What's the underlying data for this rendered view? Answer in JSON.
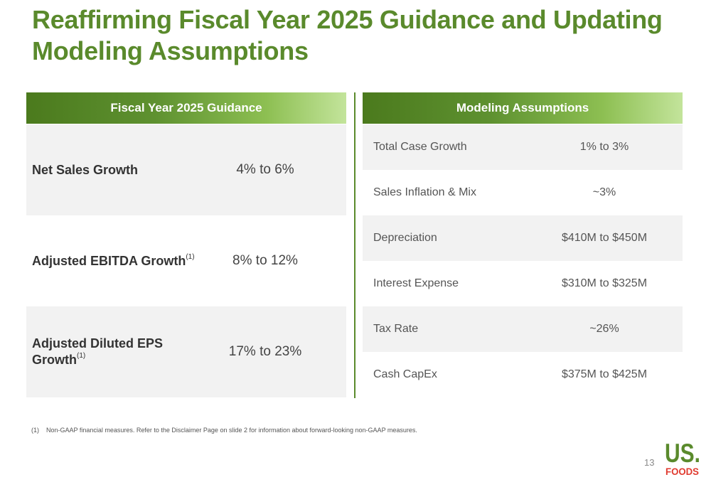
{
  "title": {
    "line1": "Reaffirming Fiscal Year 2025 Guidance and Updating",
    "line2": "Modeling Assumptions"
  },
  "guidance": {
    "header": "Fiscal Year 2025 Guidance",
    "rows": [
      {
        "label": "Net Sales Growth",
        "value": "4% to 6%"
      },
      {
        "label": "Adjusted EBITDA Growth",
        "note": "(1)",
        "value": "8% to 12%"
      },
      {
        "label": "Adjusted Diluted EPS Growth",
        "note": "(1)",
        "value": "17% to 23%"
      }
    ]
  },
  "assumptions": {
    "header": "Modeling Assumptions",
    "rows": [
      {
        "label": "Total Case Growth",
        "value": "1% to 3%"
      },
      {
        "label": "Sales Inflation & Mix",
        "value": "~3%"
      },
      {
        "label": "Depreciation",
        "value": "$410M to $450M"
      },
      {
        "label": "Interest Expense",
        "value": "$310M to $325M"
      },
      {
        "label": "Tax Rate",
        "value": "~26%"
      },
      {
        "label": "Cash CapEx",
        "value": "$375M to $425M"
      }
    ]
  },
  "footnote": {
    "number": "(1)",
    "text": "Non-GAAP financial measures. Refer to the Disclaimer Page on slide 2 for information about forward-looking non-GAAP measures."
  },
  "page_number": "13",
  "logo": {
    "line1": "US.",
    "line2": "FOODS"
  },
  "colors": {
    "title_green": "#5a8a2c",
    "header_dark_green": "#4b7a1d",
    "header_light_green": "#c3e49b",
    "logo_green": "#5a8a2c",
    "logo_red": "#e03a2f",
    "row_shade": "#f2f2f2"
  }
}
